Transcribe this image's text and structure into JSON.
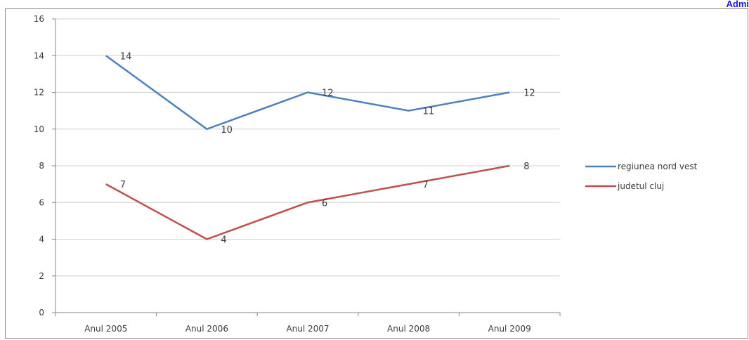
{
  "header": {
    "link_text": "Admi"
  },
  "colors": {
    "series1": "#4f81bd",
    "series2": "#c0504d",
    "grid": "#cfcfcf",
    "axis": "#868686"
  },
  "chart_data": {
    "type": "line",
    "categories": [
      "Anul 2005",
      "Anul 2006",
      "Anul 2007",
      "Anul 2008",
      "Anul 2009"
    ],
    "series": [
      {
        "name": "regiunea nord vest",
        "values": [
          14,
          10,
          12,
          11,
          12
        ]
      },
      {
        "name": "judetul cluj",
        "values": [
          7,
          4,
          6,
          7,
          8
        ]
      }
    ],
    "ylim": [
      0,
      16
    ],
    "yticks": [
      0,
      2,
      4,
      6,
      8,
      10,
      12,
      14,
      16
    ],
    "grid": true,
    "legend": "right",
    "data_labels": true
  }
}
